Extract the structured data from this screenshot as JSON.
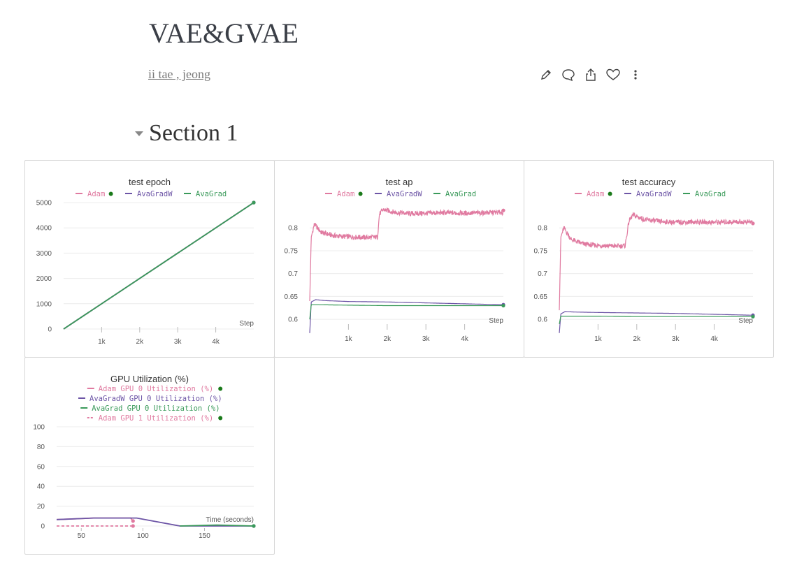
{
  "report": {
    "title": "VAE&GVAE",
    "author": "ii tae , jeong",
    "actions": [
      "edit-icon",
      "comment-icon",
      "share-icon",
      "like-icon",
      "more-icon"
    ]
  },
  "section": {
    "title": "Section 1"
  },
  "colors": {
    "adam": "#e07aa0",
    "avagradw": "#6d55a6",
    "avagrad": "#3a9a5a",
    "running": "#1a7a1a"
  },
  "chart_data": [
    {
      "type": "line",
      "title": "test epoch",
      "legend": [
        "Adam",
        "AvaGradW",
        "AvaGrad"
      ],
      "legend_running_marker": "Adam",
      "xlabel": "Step",
      "xticks": [
        "1k",
        "2k",
        "3k",
        "4k"
      ],
      "xlim": [
        0,
        5000
      ],
      "yticks": [
        "0",
        "1000",
        "2000",
        "3000",
        "4000",
        "5000"
      ],
      "ylim": [
        0,
        5000
      ],
      "series": [
        {
          "name": "Adam",
          "x": [
            0,
            5000
          ],
          "y": [
            0,
            5000
          ]
        },
        {
          "name": "AvaGradW",
          "x": [
            0,
            5000
          ],
          "y": [
            0,
            5000
          ]
        },
        {
          "name": "AvaGrad",
          "x": [
            0,
            5000
          ],
          "y": [
            0,
            5000
          ]
        }
      ]
    },
    {
      "type": "line",
      "title": "test ap",
      "legend": [
        "Adam",
        "AvaGradW",
        "AvaGrad"
      ],
      "legend_running_marker": "Adam",
      "xlabel": "Step",
      "xticks": [
        "1k",
        "2k",
        "3k",
        "4k"
      ],
      "xlim": [
        0,
        5000
      ],
      "yticks": [
        "0.6",
        "0.65",
        "0.7",
        "0.75",
        "0.8"
      ],
      "ylim": [
        0.585,
        0.84
      ],
      "series": [
        {
          "name": "Adam",
          "x": [
            0,
            40,
            120,
            300,
            600,
            900,
            1200,
            1500,
            1750,
            1800,
            1900,
            2200,
            2600,
            3000,
            3500,
            4000,
            4500,
            5000
          ],
          "y": [
            0.64,
            0.78,
            0.808,
            0.79,
            0.783,
            0.781,
            0.78,
            0.779,
            0.78,
            0.83,
            0.84,
            0.834,
            0.831,
            0.832,
            0.833,
            0.832,
            0.833,
            0.834
          ]
        },
        {
          "name": "AvaGradW",
          "x": [
            0,
            40,
            150,
            400,
            1000,
            2000,
            3000,
            4000,
            5000
          ],
          "y": [
            0.57,
            0.638,
            0.643,
            0.641,
            0.639,
            0.638,
            0.636,
            0.634,
            0.632
          ]
        },
        {
          "name": "AvaGrad",
          "x": [
            0,
            40,
            200,
            1000,
            2000,
            3000,
            4000,
            5000
          ],
          "y": [
            0.6,
            0.632,
            0.632,
            0.631,
            0.63,
            0.63,
            0.63,
            0.63
          ]
        }
      ]
    },
    {
      "type": "line",
      "title": "test accuracy",
      "legend": [
        "Adam",
        "AvaGradW",
        "AvaGrad"
      ],
      "legend_running_marker": "Adam",
      "xlabel": "Step",
      "xticks": [
        "1k",
        "2k",
        "3k",
        "4k"
      ],
      "xlim": [
        0,
        5000
      ],
      "yticks": [
        "0.6",
        "0.65",
        "0.7",
        "0.75",
        "0.8"
      ],
      "ylim": [
        0.585,
        0.84
      ],
      "series": [
        {
          "name": "Adam",
          "x": [
            0,
            40,
            120,
            300,
            600,
            900,
            1200,
            1500,
            1700,
            1800,
            1900,
            2200,
            2600,
            3000,
            3500,
            4000,
            4500,
            5000
          ],
          "y": [
            0.62,
            0.78,
            0.8,
            0.775,
            0.765,
            0.762,
            0.761,
            0.76,
            0.761,
            0.815,
            0.828,
            0.818,
            0.814,
            0.812,
            0.813,
            0.812,
            0.813,
            0.813
          ]
        },
        {
          "name": "AvaGradW",
          "x": [
            0,
            40,
            150,
            400,
            1000,
            2000,
            3000,
            4000,
            5000
          ],
          "y": [
            0.57,
            0.612,
            0.617,
            0.616,
            0.615,
            0.614,
            0.613,
            0.611,
            0.609
          ]
        },
        {
          "name": "AvaGrad",
          "x": [
            0,
            40,
            200,
            1000,
            2000,
            3000,
            4000,
            5000
          ],
          "y": [
            0.59,
            0.607,
            0.607,
            0.607,
            0.606,
            0.606,
            0.606,
            0.606
          ]
        }
      ]
    },
    {
      "type": "line",
      "title": "GPU Utilization (%)",
      "legend": [
        "Adam GPU 0 Utilization (%)",
        "AvaGradW GPU 0 Utilization (%)",
        "AvaGrad GPU 0 Utilization (%)",
        "Adam GPU 1 Utilization (%)"
      ],
      "legend_running_marker": [
        "Adam GPU 0 Utilization (%)",
        "Adam GPU 1 Utilization (%)"
      ],
      "xlabel": "Time (seconds)",
      "xticks": [
        "50",
        "100",
        "150"
      ],
      "xlim": [
        30,
        190
      ],
      "yticks": [
        "0",
        "20",
        "40",
        "60",
        "80",
        "100"
      ],
      "ylim": [
        0,
        100
      ],
      "series": [
        {
          "name": "Adam GPU 0 Utilization (%)",
          "x": [
            30,
            60,
            90,
            92
          ],
          "y": [
            6.5,
            8,
            8,
            5
          ]
        },
        {
          "name": "AvaGradW GPU 0 Utilization (%)",
          "x": [
            30,
            60,
            95,
            130,
            190
          ],
          "y": [
            6.5,
            8,
            8,
            0,
            0
          ]
        },
        {
          "name": "AvaGrad GPU 0 Utilization (%)",
          "x": [
            130,
            160,
            190
          ],
          "y": [
            0,
            1,
            0
          ]
        },
        {
          "name": "Adam GPU 1 Utilization (%)",
          "x": [
            30,
            92
          ],
          "y": [
            0,
            0
          ],
          "dashed": true
        }
      ]
    }
  ]
}
